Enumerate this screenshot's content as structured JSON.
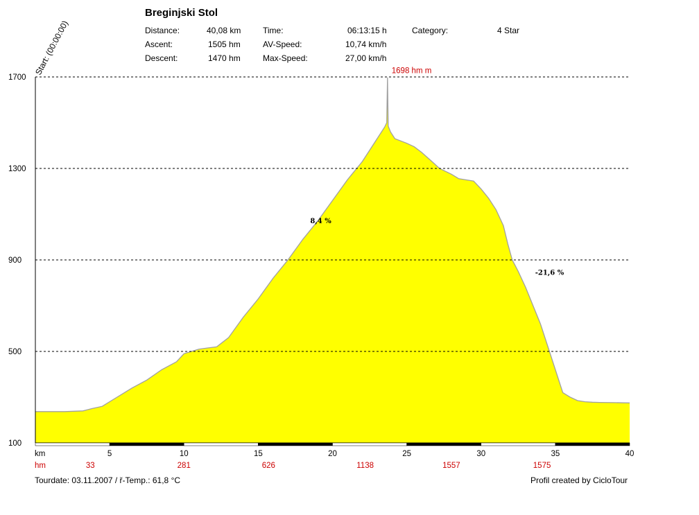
{
  "header": {
    "title": "Breginjski Stol",
    "stats": [
      {
        "label": "Distance:",
        "value": "40,08 km"
      },
      {
        "label": "Ascent:",
        "value": "1505 hm"
      },
      {
        "label": "Descent:",
        "value": "1470 hm"
      },
      {
        "label": "Time:",
        "value": "06:13:15 h"
      },
      {
        "label": "AV-Speed:",
        "value": "10,74 km/h"
      },
      {
        "label": "Max-Speed:",
        "value": "27,00 km/h"
      },
      {
        "label": "Category:",
        "value": "4 Star"
      }
    ],
    "start_label": "Start: (00:00:00)"
  },
  "footer": {
    "tourdate": "Tourdate: 03.11.2007  /  ř-Temp.: 61,8 °C",
    "credit": "Profil created by CicloTour"
  },
  "chart_data": {
    "type": "area",
    "title": "Breginjski Stol",
    "xlabel": "km",
    "ylabel": "",
    "xlim": [
      0,
      40
    ],
    "ylim": [
      100,
      1700
    ],
    "grid": true,
    "x_ticks": [
      5,
      10,
      15,
      20,
      25,
      30,
      35,
      40
    ],
    "y_ticks": [
      1700,
      1300,
      900,
      500,
      100
    ],
    "fill_color": "#ffff00",
    "line_color": "#a0a0a0",
    "series": [
      {
        "x": [
          0,
          2,
          3.2,
          3.8,
          4.5,
          5.5,
          6.5,
          7.5,
          8.5,
          9.5,
          10,
          11,
          11.6,
          12.2,
          13,
          14,
          15,
          16,
          17,
          18,
          19,
          20,
          21,
          22,
          23,
          23.5,
          23.65,
          23.7,
          23.75,
          23.9,
          24.2,
          25,
          25.5,
          26,
          26.7,
          27.2,
          28,
          28.5,
          29,
          29.5,
          30,
          30.5,
          31,
          31.5,
          31.8,
          32.1,
          32.5,
          33,
          33.5,
          34,
          34.5,
          35,
          35.5,
          36,
          36.5,
          37,
          37.5,
          38,
          39,
          40
        ],
        "y": [
          237,
          237,
          240,
          250,
          260,
          300,
          340,
          375,
          420,
          455,
          490,
          510,
          515,
          520,
          560,
          650,
          730,
          820,
          900,
          990,
          1070,
          1160,
          1250,
          1330,
          1430,
          1480,
          1500,
          1698,
          1485,
          1460,
          1430,
          1410,
          1395,
          1370,
          1330,
          1300,
          1275,
          1255,
          1250,
          1245,
          1210,
          1170,
          1120,
          1050,
          970,
          900,
          850,
          780,
          700,
          620,
          520,
          420,
          320,
          300,
          285,
          280,
          278,
          277,
          276,
          275
        ]
      }
    ],
    "annotations": [
      {
        "text": "1698 hm m",
        "x": 23.7,
        "y": 1698
      },
      {
        "text": "8,4 %",
        "x": 18.5,
        "y": 1060
      },
      {
        "text": "-21,6 %",
        "x": 33.5,
        "y": 835
      }
    ],
    "waypoints": {
      "label": "hm",
      "items": [
        {
          "x": 3.7,
          "text": "33"
        },
        {
          "x": 10.0,
          "text": "281"
        },
        {
          "x": 15.7,
          "text": "626"
        },
        {
          "x": 22.2,
          "text": "1138"
        },
        {
          "x": 28.0,
          "text": "1557"
        },
        {
          "x": 34.1,
          "text": "1575"
        }
      ]
    }
  }
}
